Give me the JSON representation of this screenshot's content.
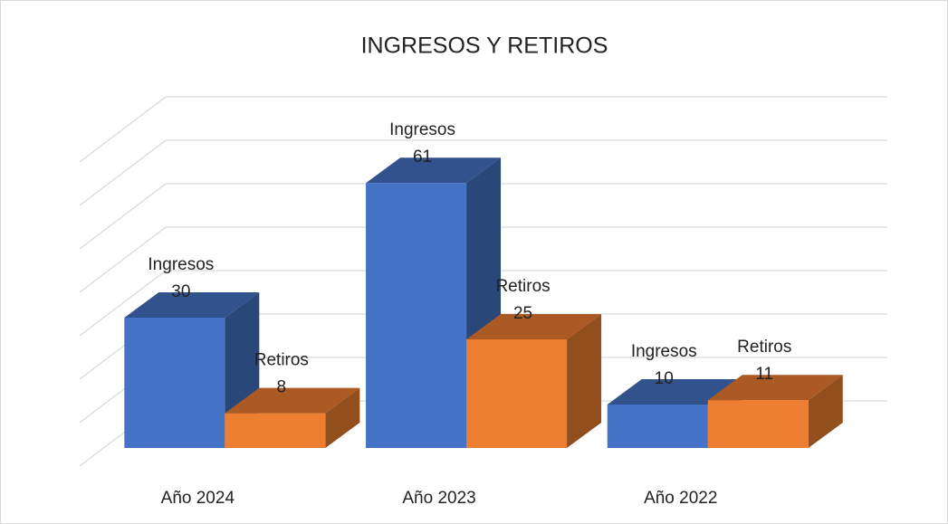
{
  "chart_data": {
    "type": "bar3d",
    "title": "INGRESOS Y RETIROS",
    "categories": [
      "Año 2024",
      "Año 2023",
      "Año 2022"
    ],
    "series": [
      {
        "name": "Ingresos",
        "color": "#4472c4",
        "values": [
          30,
          61,
          10
        ]
      },
      {
        "name": "Retiros",
        "color": "#ed7d31",
        "values": [
          8,
          25,
          11
        ]
      }
    ],
    "ylim": [
      0,
      75
    ],
    "yticks": [
      5,
      15,
      25,
      35,
      45,
      55,
      65,
      75
    ],
    "grid": true
  }
}
